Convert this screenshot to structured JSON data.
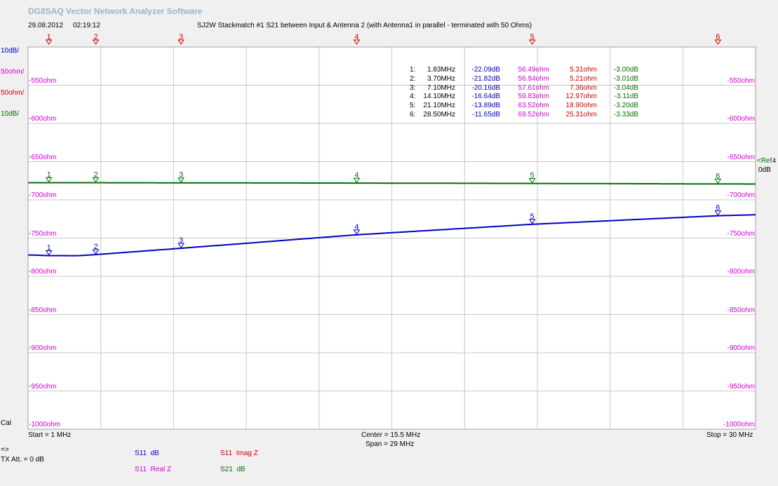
{
  "app": {
    "title": "DG8SAQ Vector Network Analyzer Software",
    "date": "29.08.2012",
    "time": "02:19:12"
  },
  "left_scales": [
    {
      "label": "10dB/",
      "color": "#0000c0"
    },
    {
      "label": "50ohm/",
      "color": "#d000d0"
    },
    {
      "label": "50ohm/",
      "color": "#d00000"
    },
    {
      "label": "10dB/",
      "color": "#007000"
    }
  ],
  "y_tick_labels": [
    "-550ohm",
    "-600ohm",
    "-650ohm",
    "-700ohm",
    "-750ohm",
    "-800ohm",
    "-850ohm",
    "-900ohm",
    "-950ohm",
    "-1000ohm"
  ],
  "ref_label": {
    "line1": "<Ref",
    "line2": "0dB",
    "arrow": "4"
  },
  "cal_label": "Cal",
  "freq_axis": {
    "start": "Start = 1 MHz",
    "center": "Center = 15.5 MHz",
    "span": "Span = 29 MHz",
    "stop": "Stop = 30 MHz"
  },
  "status": {
    "arrow": "=>",
    "tx_att": "TX Att.  = 0 dB"
  },
  "legend": [
    {
      "trace": "S11",
      "kind": "dB",
      "color": "#0000c0"
    },
    {
      "trace": "S11",
      "kind": "Imag Z",
      "color": "#d00000"
    },
    {
      "trace": "S11",
      "kind": "Real Z",
      "color": "#d000d0"
    },
    {
      "trace": "S21",
      "kind": "dB",
      "color": "#007000"
    }
  ],
  "colors": {
    "s11_db": "#0000c0",
    "s11_real": "#d000d0",
    "s11_imag": "#d00000",
    "s21_db": "#007000",
    "grid": "#c8c8c8",
    "marker": "#d00000",
    "title": "#9cb4cc"
  },
  "chart_data": {
    "type": "line",
    "title": "SJ2W Stackmatch #1 S21 between Input & Antenna 2 (with Antenna1 in parallel - terminated with 50 Ohms)",
    "x_unit": "MHz",
    "xlim": [
      1,
      30
    ],
    "grid": true,
    "series": [
      {
        "name": "S11 dB",
        "color": "#0000c0",
        "x": [
          1,
          1.83,
          3.0,
          3.7,
          7.1,
          14.1,
          21.1,
          28.5,
          30
        ],
        "y": [
          -21.9,
          -22.09,
          -22.1,
          -21.82,
          -20.16,
          -16.64,
          -13.89,
          -11.65,
          -11.4
        ]
      },
      {
        "name": "S21 dB",
        "color": "#007000",
        "x": [
          1,
          1.83,
          3.7,
          7.1,
          14.1,
          21.1,
          28.5,
          30
        ],
        "y": [
          -3.0,
          -3.0,
          -3.01,
          -3.04,
          -3.11,
          -3.2,
          -3.33,
          -3.35
        ]
      }
    ],
    "db_scale": {
      "ref_db": 0,
      "db_per_div": 10
    },
    "markers": [
      {
        "id": "1",
        "freq_label": "1.83MHz",
        "freq": 1.83,
        "s11_db": "-22.09dB",
        "real": "56.49ohm",
        "imag": "5.31ohm",
        "s21_db": "-3.00dB"
      },
      {
        "id": "2",
        "freq_label": "3.70MHz",
        "freq": 3.7,
        "s11_db": "-21.82dB",
        "real": "56.94ohm",
        "imag": "5.21ohm",
        "s21_db": "-3.01dB"
      },
      {
        "id": "3",
        "freq_label": "7.10MHz",
        "freq": 7.1,
        "s11_db": "-20.16dB",
        "real": "57.61ohm",
        "imag": "7.36ohm",
        "s21_db": "-3.04dB"
      },
      {
        "id": "4",
        "freq_label": "14.10MHz",
        "freq": 14.1,
        "s11_db": "-16.64dB",
        "real": "59.83ohm",
        "imag": "12.97ohm",
        "s21_db": "-3.11dB"
      },
      {
        "id": "5",
        "freq_label": "21.10MHz",
        "freq": 21.1,
        "s11_db": "-13.89dB",
        "real": "63.52ohm",
        "imag": "18.90ohm",
        "s21_db": "-3.20dB"
      },
      {
        "id": "6",
        "freq_label": "28.50MHz",
        "freq": 28.5,
        "s11_db": "-11.65dB",
        "real": "69.52ohm",
        "imag": "25.31ohm",
        "s21_db": "-3.33dB"
      }
    ]
  }
}
